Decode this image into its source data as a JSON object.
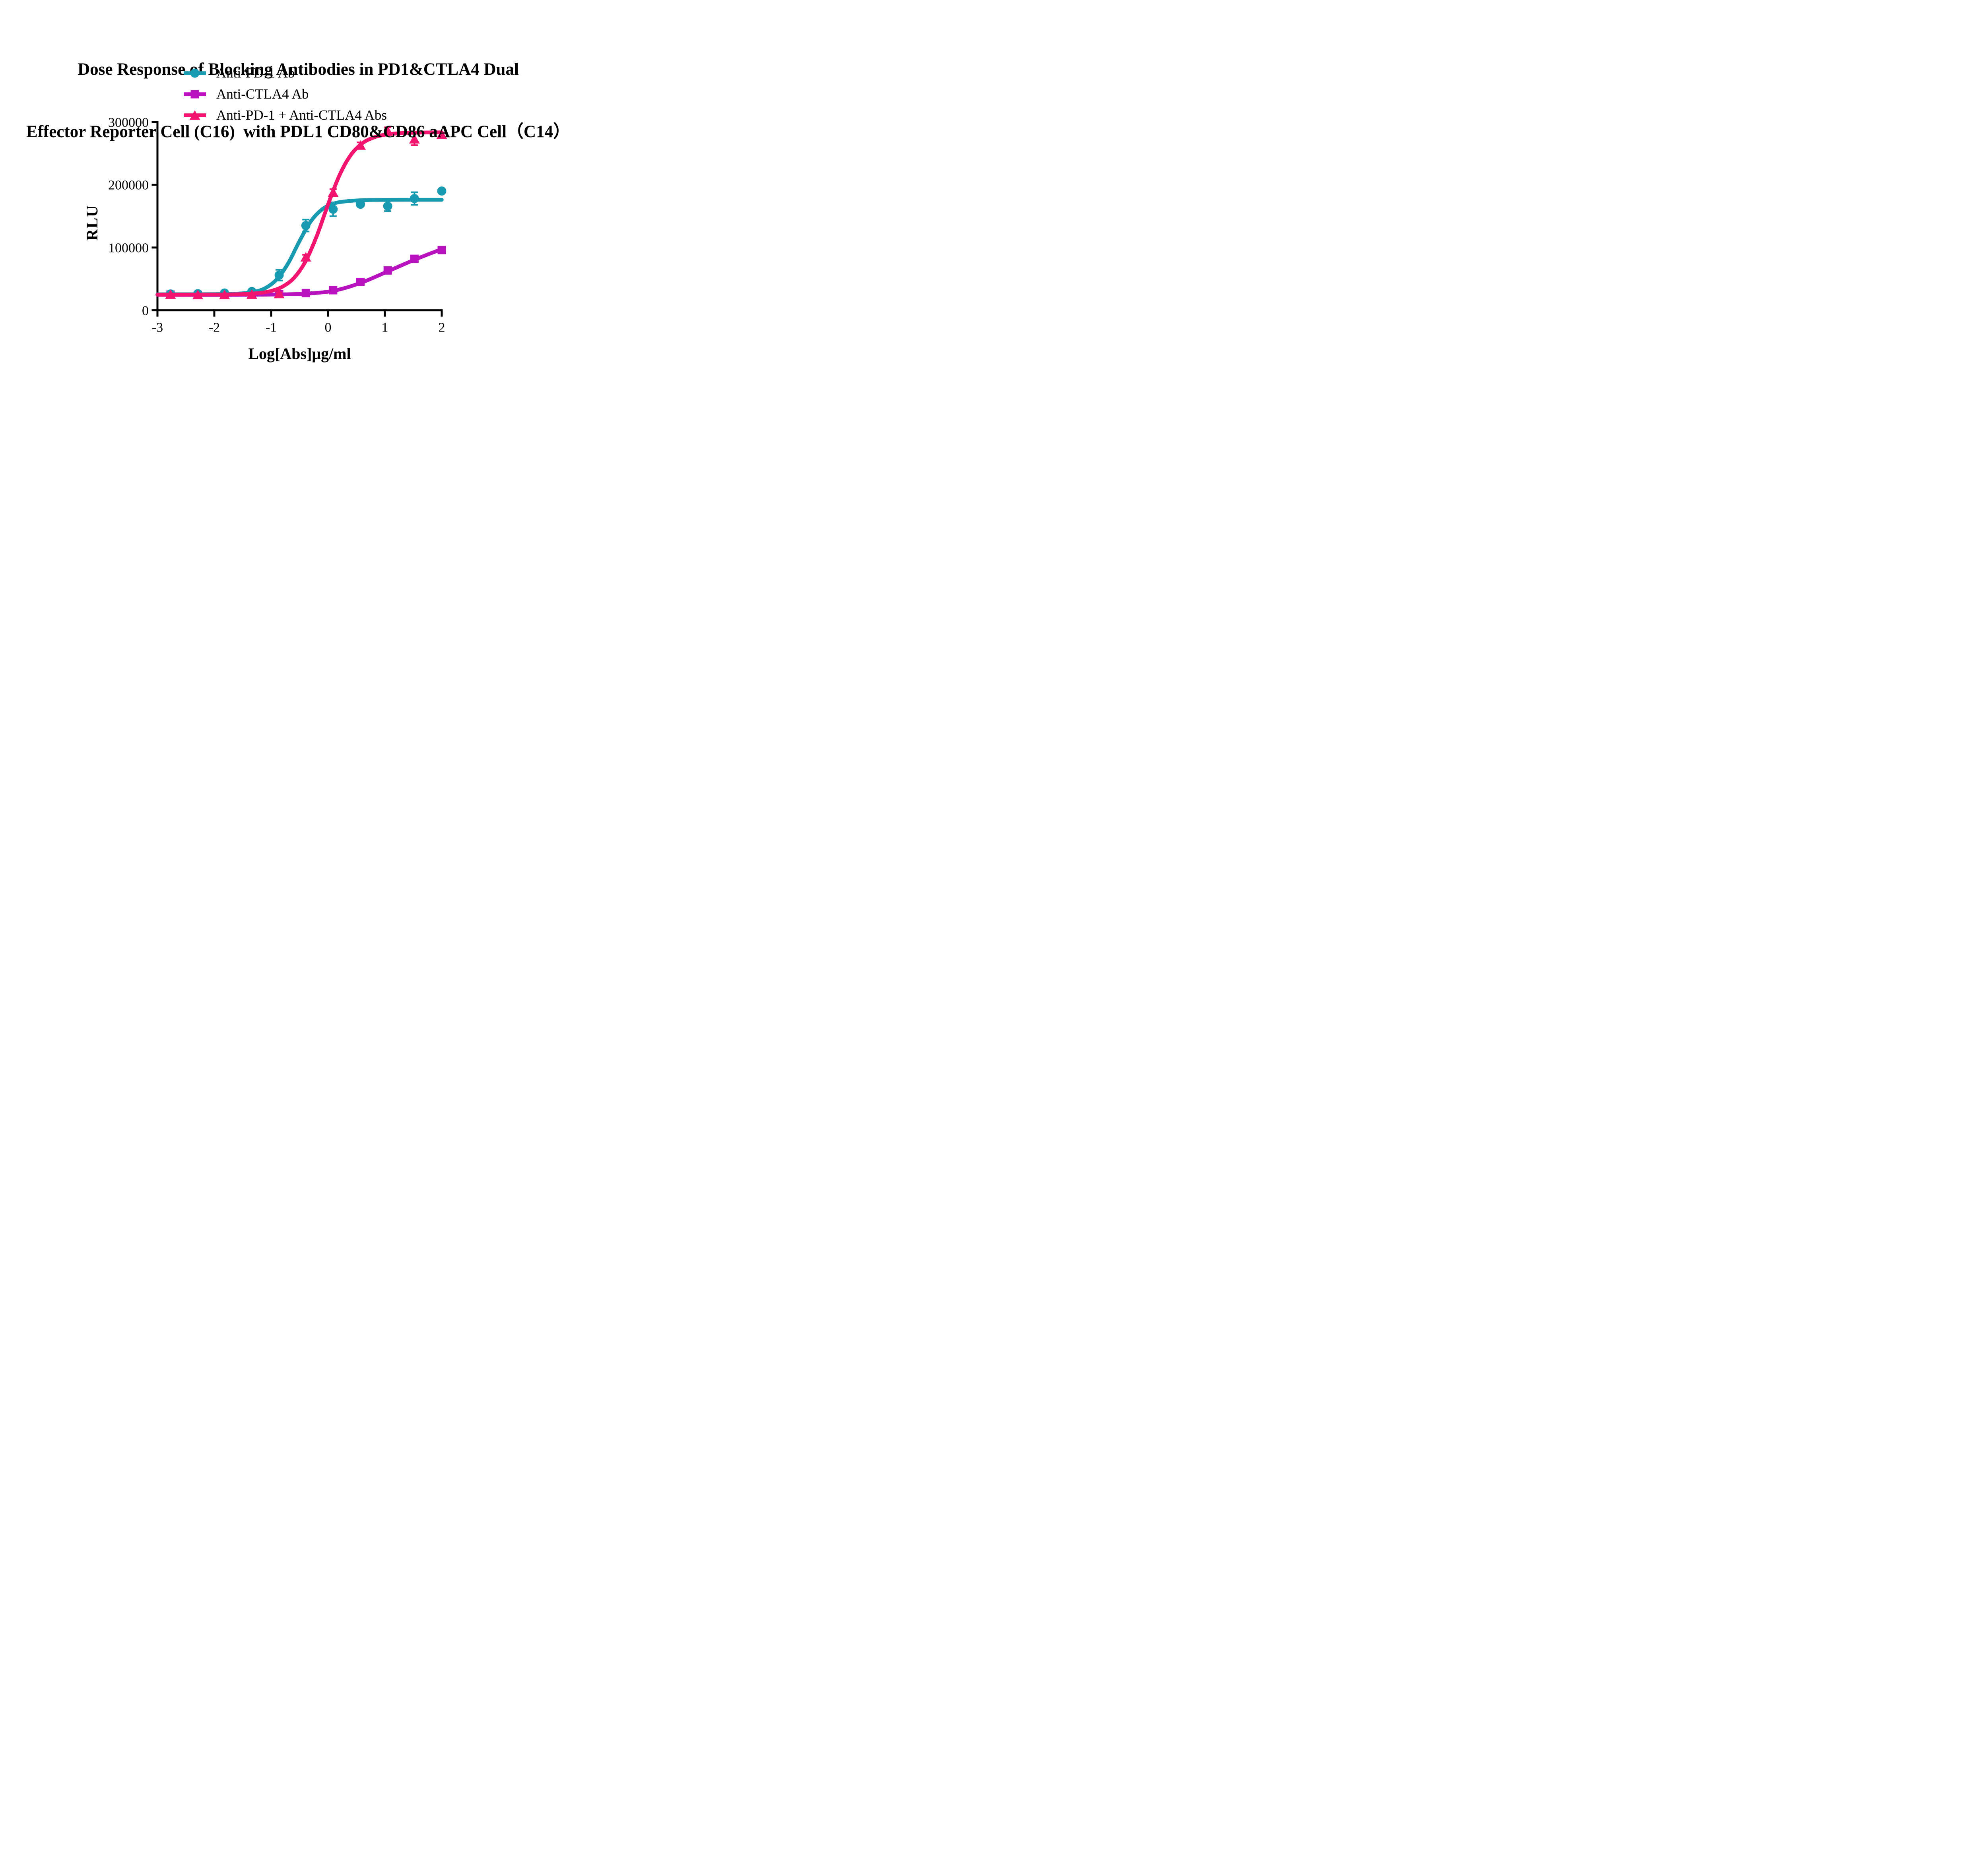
{
  "chart_data": {
    "type": "line",
    "title_lines": [
      "Dose Response of Blocking Antibodies in PD1&CTLA4 Dual",
      "Effector Reporter Cell (C16)  with PDL1 CD80&CD86 aAPC Cell（C14）"
    ],
    "xlabel": "Log[Abs]μg/ml",
    "ylabel": "RLU",
    "xlim": [
      -3,
      2
    ],
    "ylim": [
      0,
      300000
    ],
    "x_tick_values": [
      -3,
      -2,
      -1,
      0,
      1,
      2
    ],
    "x_tick_labels": [
      "-3",
      "-2",
      "-1",
      "0",
      "1",
      "2"
    ],
    "y_tick_values": [
      0,
      100000,
      200000,
      300000
    ],
    "y_tick_labels": [
      "0",
      "100000",
      "200000",
      "300000"
    ],
    "grid": false,
    "background": "#ffffff",
    "axis_color": "#000000",
    "legend_position": "top-left-under-title",
    "series": [
      {
        "name": "Anti-PD-1 Ab",
        "marker": "circle",
        "color": "#189AB0",
        "z": 1,
        "x": [
          -2.77,
          -2.29,
          -1.82,
          -1.34,
          -0.86,
          -0.39,
          0.09,
          0.57,
          1.05,
          1.52,
          2.0
        ],
        "y": [
          26000,
          26500,
          27500,
          30000,
          56000,
          135000,
          161000,
          169000,
          166000,
          178000,
          190000
        ],
        "err": [
          1500,
          1500,
          1500,
          2000,
          8500,
          9500,
          11000,
          3500,
          8000,
          10000,
          2500
        ],
        "fit_curve": [
          [
            -3,
            25500
          ],
          [
            -2.5,
            25550
          ],
          [
            -2,
            25700
          ],
          [
            -1.6,
            26450
          ],
          [
            -1.3,
            29500
          ],
          [
            -1.1,
            35500
          ],
          [
            -0.9,
            49500
          ],
          [
            -0.7,
            75000
          ],
          [
            -0.5,
            110500
          ],
          [
            -0.3,
            142000
          ],
          [
            -0.1,
            161000
          ],
          [
            0.1,
            170000
          ],
          [
            0.3,
            173400
          ],
          [
            0.6,
            175400
          ],
          [
            1,
            175900
          ],
          [
            1.5,
            176000
          ],
          [
            2,
            176000
          ]
        ]
      },
      {
        "name": "Anti-CTLA4 Ab",
        "marker": "square",
        "color": "#B712BE",
        "z": 0,
        "x": [
          -2.77,
          -2.29,
          -1.82,
          -1.34,
          -0.86,
          -0.39,
          0.09,
          0.57,
          1.05,
          1.52,
          2.0
        ],
        "y": [
          25000,
          24500,
          24500,
          25000,
          26000,
          27500,
          32000,
          45000,
          63500,
          82000,
          96000
        ],
        "err": [
          1500,
          1500,
          1500,
          1500,
          1500,
          1500,
          2000,
          2000,
          2500,
          2500,
          2500
        ],
        "fit_curve": [
          [
            -3,
            24600
          ],
          [
            -2.29,
            24450
          ],
          [
            -1.82,
            24450
          ],
          [
            -1.34,
            24800
          ],
          [
            -0.86,
            25300
          ],
          [
            -0.39,
            26600
          ],
          [
            0.09,
            31000
          ],
          [
            0.57,
            43500
          ],
          [
            1.05,
            62000
          ],
          [
            1.52,
            80500
          ],
          [
            2,
            97500
          ]
        ]
      },
      {
        "name": "Anti-PD-1 + Anti-CTLA4 Abs",
        "marker": "triangle",
        "color": "#F3146F",
        "z": 2,
        "x": [
          -2.77,
          -2.29,
          -1.82,
          -1.34,
          -0.86,
          -0.39,
          0.09,
          0.57,
          1.05,
          1.52,
          2.0
        ],
        "y": [
          25500,
          25000,
          25000,
          25500,
          26500,
          85000,
          188000,
          263000,
          286000,
          273000,
          280000
        ],
        "err": [
          1500,
          1500,
          1500,
          1500,
          2000,
          3500,
          5000,
          4500,
          5500,
          10000,
          2500
        ],
        "fit_curve": [
          [
            -3,
            25000
          ],
          [
            -2,
            25150
          ],
          [
            -1.5,
            25800
          ],
          [
            -1.2,
            27700
          ],
          [
            -1,
            30850
          ],
          [
            -0.8,
            37700
          ],
          [
            -0.6,
            51500
          ],
          [
            -0.4,
            77200
          ],
          [
            -0.2,
            117900
          ],
          [
            0,
            168400
          ],
          [
            0.2,
            214800
          ],
          [
            0.4,
            247300
          ],
          [
            0.6,
            265800
          ],
          [
            0.8,
            275200
          ],
          [
            1,
            279700
          ],
          [
            1.3,
            282300
          ],
          [
            1.6,
            283100
          ],
          [
            2,
            283400
          ]
        ]
      }
    ]
  }
}
